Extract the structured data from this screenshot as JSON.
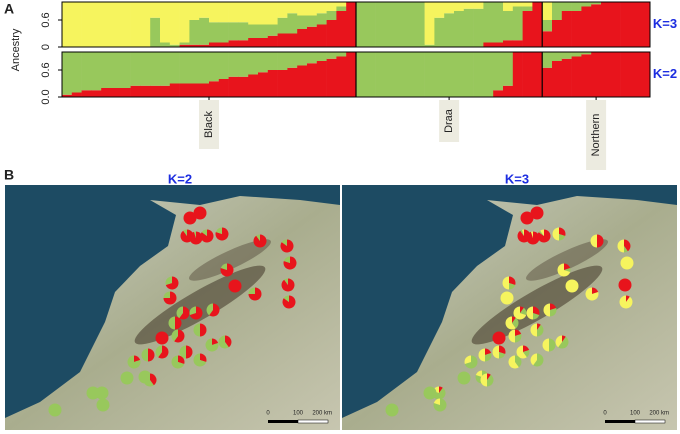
{
  "panel_labels": [
    "A",
    "B"
  ],
  "chart_data": [
    {
      "type": "stacked-bar",
      "label": "K=3",
      "y_label": "Ancestry",
      "ylim": [
        0,
        1
      ],
      "yticks": [
        0,
        0.6
      ],
      "groups": [
        {
          "series": [
            {
              "color": "#e8141c",
              "values": [
                0,
                0,
                0,
                0,
                0,
                0,
                0,
                0,
                0,
                0,
                0,
                0,
                0.05,
                0.05,
                0.05,
                0.1,
                0.1,
                0.15,
                0.15,
                0.2,
                0.2,
                0.25,
                0.3,
                0.3,
                0.4,
                0.45,
                0.5,
                0.6,
                0.8,
                1
              ]
            },
            {
              "color": "#98c85c",
              "values": [
                0,
                0,
                0,
                0,
                0,
                0,
                0,
                0,
                0,
                0.65,
                0.1,
                0.05,
                0.05,
                0.55,
                0.6,
                0.45,
                0.45,
                0.4,
                0.4,
                0.3,
                0.3,
                0.25,
                0.35,
                0.45,
                0.3,
                0.25,
                0.25,
                0.2,
                0.1,
                0
              ]
            },
            {
              "color": "#f6f45e",
              "values": [
                1,
                1,
                1,
                1,
                1,
                1,
                1,
                1,
                1,
                0.35,
                0.9,
                0.95,
                0.9,
                0.4,
                0.35,
                0.45,
                0.45,
                0.45,
                0.45,
                0.5,
                0.5,
                0.5,
                0.35,
                0.25,
                0.3,
                0.3,
                0.25,
                0.2,
                0.1,
                0
              ]
            }
          ]
        },
        {
          "series": [
            {
              "color": "#e8141c",
              "values": [
                0,
                0,
                0,
                0,
                0,
                0,
                0,
                0,
                0,
                0,
                0,
                0,
                0,
                0.1,
                0.1,
                0.15,
                0.15,
                0.8,
                1
              ]
            },
            {
              "color": "#98c85c",
              "values": [
                1,
                1,
                1,
                1,
                1,
                1,
                1,
                0.05,
                0.65,
                0.75,
                0.8,
                0.85,
                0.85,
                0.9,
                0.9,
                0.65,
                0.75,
                0.1,
                0
              ]
            },
            {
              "color": "#f6f45e",
              "values": [
                0,
                0,
                0,
                0,
                0,
                0,
                0,
                0.95,
                0.35,
                0.25,
                0.2,
                0.15,
                0.15,
                0,
                0,
                0.2,
                0.1,
                0.1,
                0
              ]
            }
          ]
        },
        {
          "series": [
            {
              "color": "#e8141c",
              "values": [
                0.35,
                0.6,
                0.8,
                0.8,
                0.9,
                0.95,
                1,
                1,
                1,
                1,
                1
              ]
            },
            {
              "color": "#98c85c",
              "values": [
                0.25,
                0.4,
                0.2,
                0.2,
                0.1,
                0.05,
                0,
                0,
                0,
                0,
                0
              ]
            },
            {
              "color": "#f6f45e",
              "values": [
                0.4,
                0,
                0,
                0,
                0,
                0,
                0,
                0,
                0,
                0,
                0
              ]
            }
          ]
        }
      ]
    },
    {
      "type": "stacked-bar",
      "label": "K=2",
      "ylim": [
        0,
        1
      ],
      "yticks": [
        {
          "value": 0,
          "label": "0.0"
        },
        0.6
      ],
      "groups": [
        {
          "name": "Black",
          "series": [
            {
              "color": "#e8141c",
              "values": [
                0.05,
                0.1,
                0.15,
                0.15,
                0.2,
                0.2,
                0.2,
                0.25,
                0.25,
                0.25,
                0.25,
                0.3,
                0.3,
                0.3,
                0.3,
                0.35,
                0.4,
                0.45,
                0.45,
                0.5,
                0.55,
                0.6,
                0.6,
                0.65,
                0.7,
                0.75,
                0.8,
                0.85,
                0.9,
                1
              ]
            },
            {
              "color": "#98c85c",
              "values": [
                0.95,
                0.9,
                0.85,
                0.85,
                0.8,
                0.8,
                0.8,
                0.75,
                0.75,
                0.75,
                0.75,
                0.7,
                0.7,
                0.7,
                0.7,
                0.65,
                0.6,
                0.55,
                0.55,
                0.5,
                0.45,
                0.4,
                0.4,
                0.35,
                0.3,
                0.25,
                0.2,
                0.15,
                0.1,
                0
              ]
            }
          ]
        },
        {
          "name": "Draa",
          "series": [
            {
              "color": "#e8141c",
              "values": [
                0,
                0,
                0,
                0,
                0,
                0,
                0,
                0,
                0,
                0,
                0,
                0,
                0,
                0,
                0.15,
                0.25,
                1,
                1,
                1
              ]
            },
            {
              "color": "#98c85c",
              "values": [
                1,
                1,
                1,
                1,
                1,
                1,
                1,
                1,
                1,
                1,
                1,
                1,
                1,
                1,
                0.85,
                0.75,
                0,
                0,
                0
              ]
            }
          ]
        },
        {
          "name": "Northern",
          "series": [
            {
              "color": "#e8141c",
              "values": [
                0.65,
                0.8,
                0.85,
                0.9,
                0.95,
                1,
                1,
                1,
                1,
                1,
                1
              ]
            },
            {
              "color": "#98c85c",
              "values": [
                0.35,
                0.2,
                0.15,
                0.1,
                0.05,
                0,
                0,
                0,
                0,
                0,
                0
              ]
            }
          ]
        }
      ]
    }
  ],
  "maps": [
    {
      "title": "K=2",
      "colors": [
        "#e8141c",
        "#98c85c"
      ],
      "scale_labels": [
        "0",
        "100",
        "200 km"
      ],
      "pies": [
        [
          1,
          0
        ],
        [
          1,
          0
        ],
        [
          0.9,
          0.1
        ],
        [
          0.95,
          0.05
        ],
        [
          0.85,
          0.15
        ],
        [
          0.8,
          0.2
        ],
        [
          0.9,
          0.1
        ],
        [
          0.85,
          0.15
        ],
        [
          0.8,
          0.2
        ],
        [
          0.9,
          0.1
        ],
        [
          0.85,
          0.15
        ],
        [
          0.8,
          0.2
        ],
        [
          1,
          0
        ],
        [
          0.75,
          0.25
        ],
        [
          0.7,
          0.3
        ],
        [
          0.75,
          0.25
        ],
        [
          0.6,
          0.4
        ],
        [
          0.5,
          0.5
        ],
        [
          0.7,
          0.3
        ],
        [
          0.6,
          0.4
        ],
        [
          1,
          0
        ],
        [
          0.6,
          0.4
        ],
        [
          0.5,
          0.5
        ],
        [
          0.4,
          0.6
        ],
        [
          0.5,
          0.5
        ],
        [
          0.5,
          0.5
        ],
        [
          0.6,
          0.4
        ],
        [
          0.3,
          0.7
        ],
        [
          0.2,
          0.8
        ],
        [
          0.3,
          0.7
        ],
        [
          0,
          1
        ],
        [
          0,
          1
        ],
        [
          0.4,
          0.6
        ],
        [
          0,
          1
        ],
        [
          0,
          1
        ],
        [
          0,
          1
        ],
        [
          0,
          1
        ],
        [
          0.2,
          0.8
        ]
      ]
    },
    {
      "title": "K=3",
      "colors": [
        "#e8141c",
        "#98c85c",
        "#f6f45e"
      ],
      "scale_labels": [
        "0",
        "100",
        "200 km"
      ],
      "pies": [
        [
          1,
          0,
          0
        ],
        [
          1,
          0,
          0
        ],
        [
          0.9,
          0.05,
          0.05
        ],
        [
          0.95,
          0,
          0.05
        ],
        [
          0.85,
          0.05,
          0.1
        ],
        [
          0.3,
          0.2,
          0.5
        ],
        [
          0.5,
          0,
          0.5
        ],
        [
          0.4,
          0.1,
          0.5
        ],
        [
          0,
          0,
          1
        ],
        [
          1,
          0,
          0
        ],
        [
          0.1,
          0,
          0.9
        ],
        [
          0.2,
          0.1,
          0.7
        ],
        [
          0,
          0,
          1
        ],
        [
          0.2,
          0,
          0.8
        ],
        [
          0.3,
          0.2,
          0.5
        ],
        [
          0,
          0,
          1
        ],
        [
          0.1,
          0.2,
          0.7
        ],
        [
          0.1,
          0.3,
          0.6
        ],
        [
          0.3,
          0.2,
          0.5
        ],
        [
          0.2,
          0.3,
          0.5
        ],
        [
          1,
          0,
          0
        ],
        [
          0.2,
          0.3,
          0.5
        ],
        [
          0.1,
          0.4,
          0.5
        ],
        [
          0.1,
          0.5,
          0.4
        ],
        [
          0.2,
          0.2,
          0.6
        ],
        [
          0.2,
          0.3,
          0.5
        ],
        [
          0.3,
          0.2,
          0.5
        ],
        [
          0,
          0.6,
          0.4
        ],
        [
          0,
          0.7,
          0.3
        ],
        [
          0,
          0.4,
          0.6
        ],
        [
          0,
          0.8,
          0.2
        ],
        [
          0,
          1,
          0
        ],
        [
          0.1,
          0.4,
          0.5
        ],
        [
          0.1,
          0.7,
          0.2
        ],
        [
          0,
          1,
          0
        ],
        [
          0,
          0.8,
          0.2
        ],
        [
          0,
          1,
          0
        ],
        [
          0,
          0.5,
          0.5
        ]
      ]
    }
  ]
}
